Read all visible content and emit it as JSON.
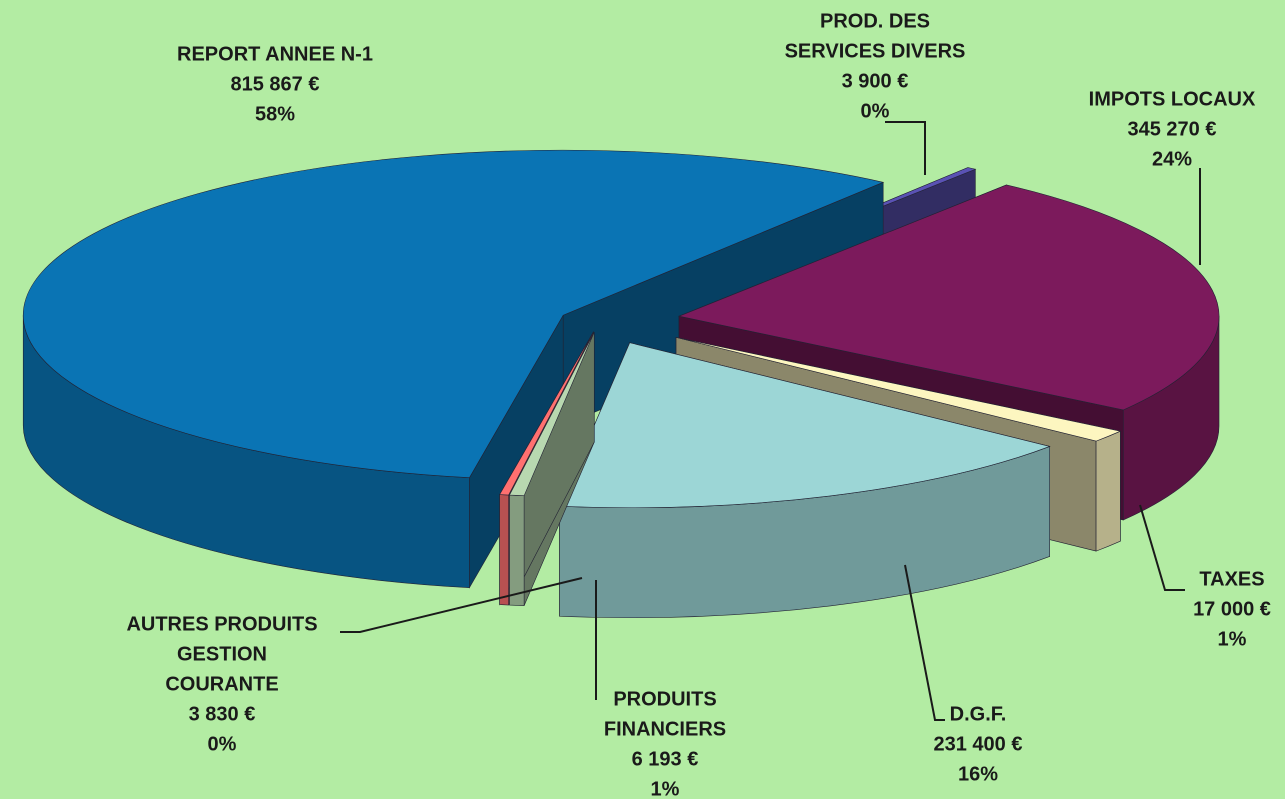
{
  "chart_data": {
    "type": "pie",
    "categories": [
      [
        "REPORT ANNEE N-1"
      ],
      [
        "PROD. DES",
        "SERVICES DIVERS"
      ],
      [
        "IMPOTS LOCAUX"
      ],
      [
        "TAXES"
      ],
      [
        "D.G.F."
      ],
      [
        "PRODUITS",
        "FINANCIERS"
      ],
      [
        "AUTRES PRODUITS",
        "GESTION",
        "COURANTE"
      ]
    ],
    "values": [
      815867,
      3900,
      345270,
      17000,
      231400,
      6193,
      3830
    ],
    "value_labels": [
      "815 867 €",
      "3 900 €",
      "345 270 €",
      "17 000 €",
      "231 400 €",
      "6 193 €",
      "3 830 €"
    ],
    "percentages": [
      58,
      0,
      24,
      1,
      16,
      1,
      0
    ],
    "percent_labels": [
      "58%",
      "0%",
      "24%",
      "1%",
      "16%",
      "1%",
      "0%"
    ],
    "colors": [
      "#0a74b4",
      "#5a52b4",
      "#7c1a5c",
      "#fdf6c0",
      "#9cd6d6",
      "#b8d8b0",
      "#ff7070"
    ]
  }
}
